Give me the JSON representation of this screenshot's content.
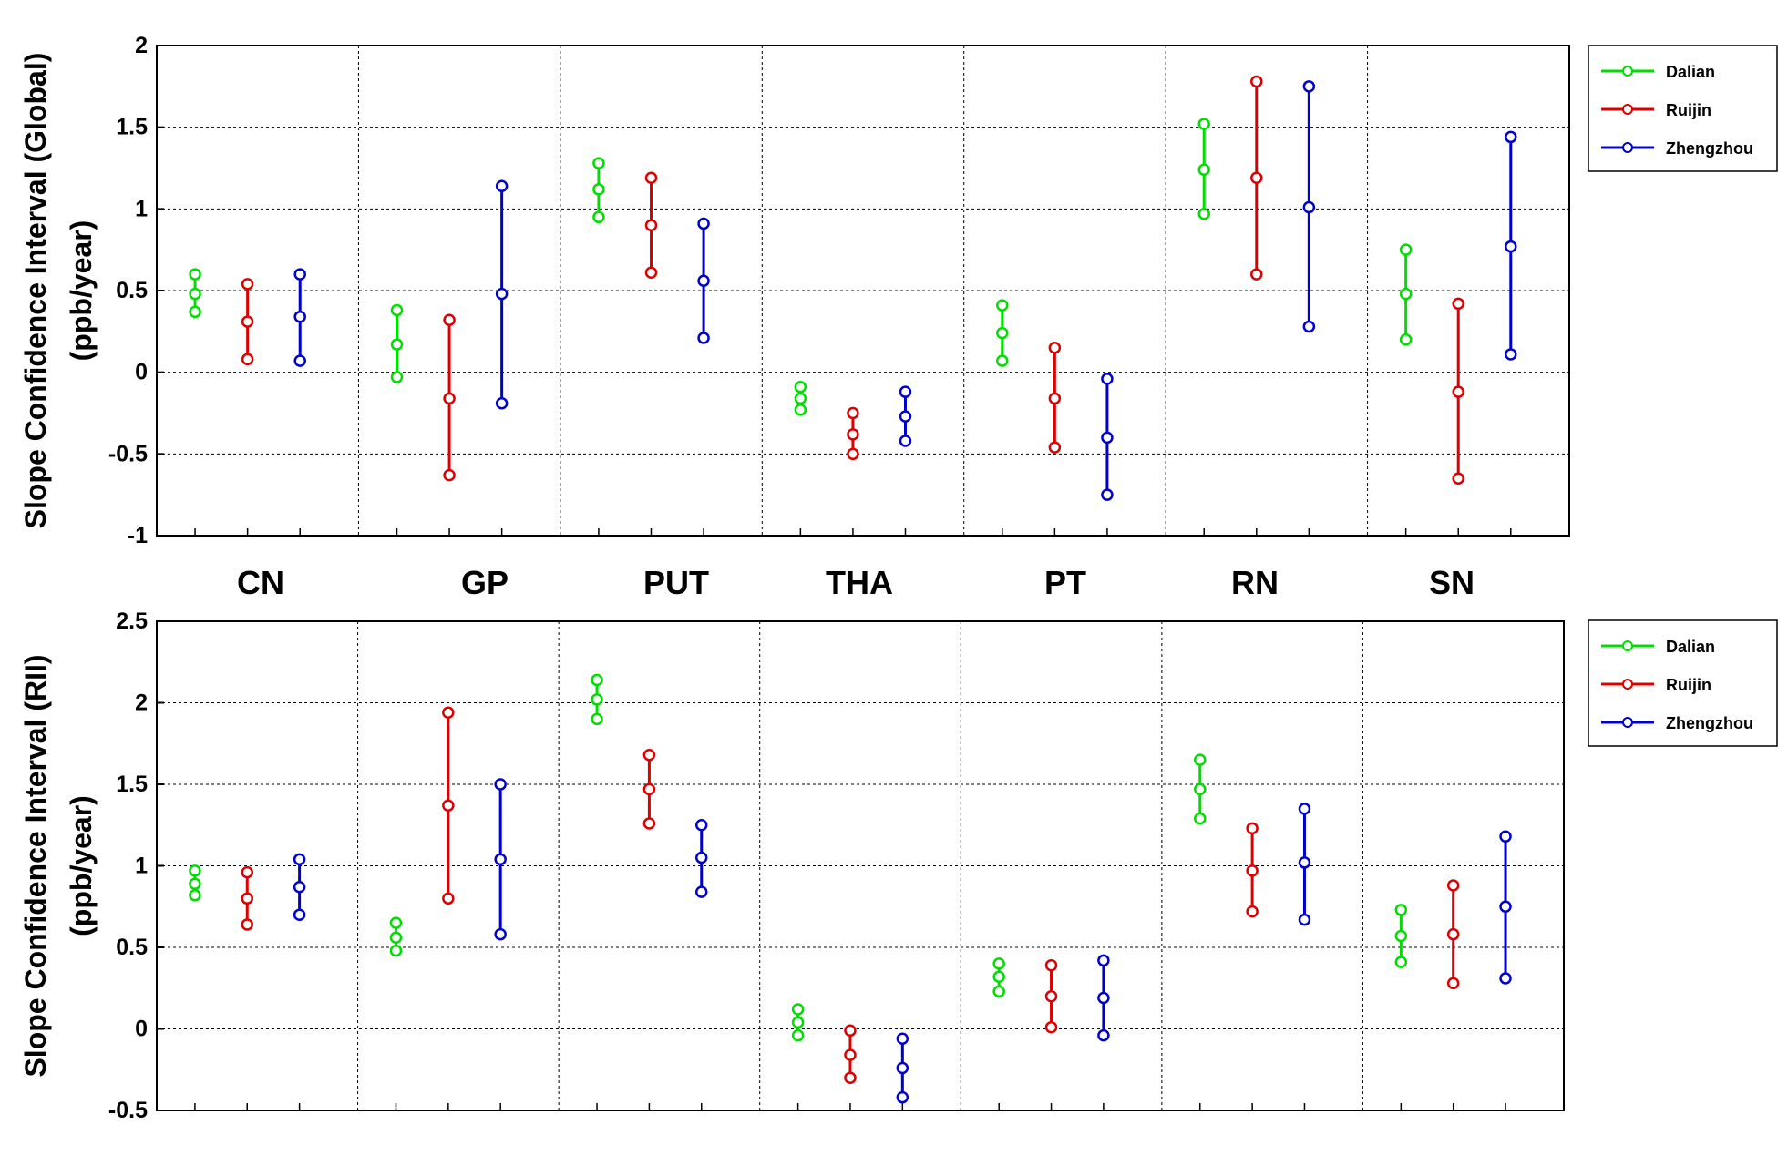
{
  "chart_data": {
    "type": "errorbar",
    "categories": [
      "CN",
      "GP",
      "PUT",
      "THA",
      "PT",
      "RN",
      "SN"
    ],
    "legend_position": "right",
    "grid": true,
    "series_colors": {
      "Dalian": "#00dd00",
      "Ruijin": "#dd0000",
      "Zhengzhou": "#0000cc"
    },
    "panels": [
      {
        "ylabel_line1": "Slope Confidence Interval (Global)",
        "ylabel_line2": "(ppb/year)",
        "ylim": [
          -1,
          2
        ],
        "yticks": [
          -1,
          -0.5,
          0,
          0.5,
          1,
          1.5,
          2
        ],
        "ytick_labels": [
          "-1",
          "-0.5",
          "0",
          "0.5",
          "1",
          "1.5",
          "2"
        ],
        "series": [
          {
            "name": "Dalian",
            "low": [
              0.37,
              -0.03,
              0.95,
              -0.23,
              0.07,
              0.97,
              0.2
            ],
            "mid": [
              0.48,
              0.17,
              1.12,
              -0.16,
              0.24,
              1.24,
              0.48
            ],
            "high": [
              0.6,
              0.38,
              1.28,
              -0.09,
              0.41,
              1.52,
              0.75
            ]
          },
          {
            "name": "Ruijin",
            "low": [
              0.08,
              -0.63,
              0.61,
              -0.5,
              -0.46,
              0.6,
              -0.65
            ],
            "mid": [
              0.31,
              -0.16,
              0.9,
              -0.38,
              -0.16,
              1.19,
              -0.12
            ],
            "high": [
              0.54,
              0.32,
              1.19,
              -0.25,
              0.15,
              1.78,
              0.42
            ]
          },
          {
            "name": "Zhengzhou",
            "low": [
              0.07,
              -0.19,
              0.21,
              -0.42,
              -0.75,
              0.28,
              0.11
            ],
            "mid": [
              0.34,
              0.48,
              0.56,
              -0.27,
              -0.4,
              1.01,
              0.77
            ],
            "high": [
              0.6,
              1.14,
              0.91,
              -0.12,
              -0.04,
              1.75,
              1.44
            ]
          }
        ]
      },
      {
        "ylabel_line1": "Slope Confidence Interval (RII)",
        "ylabel_line2": "(ppb/year)",
        "ylim": [
          -0.5,
          2.5
        ],
        "yticks": [
          -0.5,
          0,
          0.5,
          1,
          1.5,
          2,
          2.5
        ],
        "ytick_labels": [
          "-0.5",
          "0",
          "0.5",
          "1",
          "1.5",
          "2",
          "2.5"
        ],
        "series": [
          {
            "name": "Dalian",
            "low": [
              0.82,
              0.48,
              1.9,
              -0.04,
              0.23,
              1.29,
              0.41
            ],
            "mid": [
              0.89,
              0.56,
              2.02,
              0.04,
              0.32,
              1.47,
              0.57
            ],
            "high": [
              0.97,
              0.65,
              2.14,
              0.12,
              0.4,
              1.65,
              0.73
            ]
          },
          {
            "name": "Ruijin",
            "low": [
              0.64,
              0.8,
              1.26,
              -0.3,
              0.01,
              0.72,
              0.28
            ],
            "mid": [
              0.8,
              1.37,
              1.47,
              -0.16,
              0.2,
              0.97,
              0.58
            ],
            "high": [
              0.96,
              1.94,
              1.68,
              -0.01,
              0.39,
              1.23,
              0.88
            ]
          },
          {
            "name": "Zhengzhou",
            "low": [
              0.7,
              0.58,
              0.84,
              -0.42,
              -0.04,
              0.67,
              0.31
            ],
            "mid": [
              0.87,
              1.04,
              1.05,
              -0.24,
              0.19,
              1.02,
              0.75
            ],
            "high": [
              1.04,
              1.5,
              1.25,
              -0.06,
              0.42,
              1.35,
              1.18
            ]
          }
        ]
      }
    ]
  }
}
